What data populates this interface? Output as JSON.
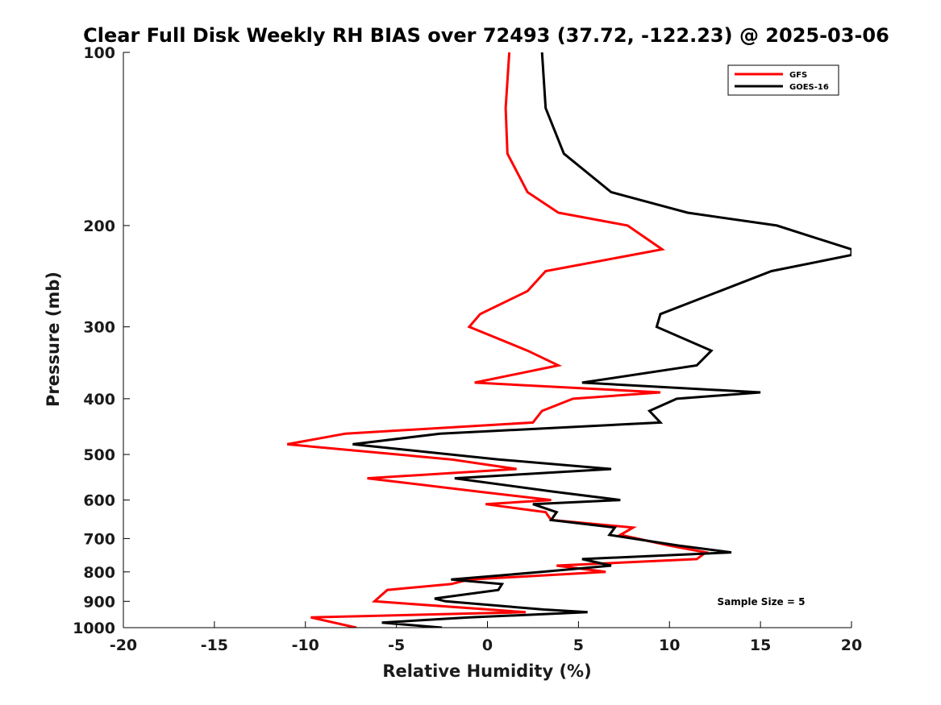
{
  "chart_data": {
    "type": "line",
    "title": "Clear Full Disk Weekly RH BIAS over 72493 (37.72, -122.23) @ 2025-03-06",
    "xlabel": "Relative Humidity (%)",
    "ylabel": "Pressure (mb)",
    "xlim": [
      -20,
      20
    ],
    "ylim": [
      100,
      1000
    ],
    "y_scale": "log",
    "y_reversed": true,
    "x_ticks": [
      -20,
      -15,
      -10,
      -5,
      0,
      5,
      10,
      15,
      20
    ],
    "y_ticks": [
      100,
      200,
      300,
      400,
      500,
      600,
      700,
      800,
      900,
      1000
    ],
    "grid": false,
    "legend_position": "top-right",
    "annotation": "Sample Size = 5",
    "series": [
      {
        "name": "GFS",
        "color": "#ff0000",
        "points": [
          [
            1.2,
            100
          ],
          [
            1.0,
            125
          ],
          [
            1.1,
            150
          ],
          [
            2.2,
            175
          ],
          [
            3.9,
            190
          ],
          [
            7.7,
            200
          ],
          [
            9.6,
            220
          ],
          [
            3.2,
            240
          ],
          [
            2.2,
            260
          ],
          [
            -0.4,
            285
          ],
          [
            -1.0,
            300
          ],
          [
            2.2,
            330
          ],
          [
            3.9,
            350
          ],
          [
            -0.7,
            375
          ],
          [
            9.5,
            390
          ],
          [
            4.7,
            400
          ],
          [
            3.0,
            420
          ],
          [
            2.5,
            440
          ],
          [
            -7.8,
            460
          ],
          [
            -11.0,
            480
          ],
          [
            -2.0,
            510
          ],
          [
            1.6,
            530
          ],
          [
            -6.6,
            550
          ],
          [
            -0.5,
            580
          ],
          [
            3.5,
            600
          ],
          [
            -0.1,
            610
          ],
          [
            3.2,
            630
          ],
          [
            3.5,
            650
          ],
          [
            8.0,
            670
          ],
          [
            7.3,
            690
          ],
          [
            10.0,
            720
          ],
          [
            12.0,
            740
          ],
          [
            11.5,
            760
          ],
          [
            3.8,
            780
          ],
          [
            6.5,
            800
          ],
          [
            -1.0,
            825
          ],
          [
            -2.0,
            840
          ],
          [
            -5.5,
            860
          ],
          [
            -6.2,
            900
          ],
          [
            2.1,
            940
          ],
          [
            -9.7,
            960
          ],
          [
            -7.2,
            1000
          ]
        ]
      },
      {
        "name": "GOES-16",
        "color": "#000000",
        "points": [
          [
            3.0,
            100
          ],
          [
            3.2,
            125
          ],
          [
            4.2,
            150
          ],
          [
            6.8,
            175
          ],
          [
            11.0,
            190
          ],
          [
            15.9,
            200
          ],
          [
            20.0,
            220
          ],
          [
            20.0,
            225
          ],
          [
            15.6,
            240
          ],
          [
            9.5,
            285
          ],
          [
            9.3,
            300
          ],
          [
            12.3,
            330
          ],
          [
            11.5,
            350
          ],
          [
            5.2,
            375
          ],
          [
            15.0,
            390
          ],
          [
            10.4,
            400
          ],
          [
            8.9,
            420
          ],
          [
            9.5,
            440
          ],
          [
            -2.6,
            460
          ],
          [
            -7.4,
            480
          ],
          [
            0.6,
            510
          ],
          [
            6.8,
            530
          ],
          [
            -1.8,
            550
          ],
          [
            3.6,
            580
          ],
          [
            7.3,
            600
          ],
          [
            2.5,
            610
          ],
          [
            3.8,
            630
          ],
          [
            3.5,
            650
          ],
          [
            7.0,
            670
          ],
          [
            6.7,
            690
          ],
          [
            10.5,
            720
          ],
          [
            13.4,
            740
          ],
          [
            5.2,
            760
          ],
          [
            6.8,
            780
          ],
          [
            3.0,
            800
          ],
          [
            -2.0,
            825
          ],
          [
            0.8,
            840
          ],
          [
            0.6,
            860
          ],
          [
            -2.9,
            890
          ],
          [
            -2.3,
            900
          ],
          [
            3.1,
            930
          ],
          [
            5.5,
            940
          ],
          [
            -1.0,
            960
          ],
          [
            -5.8,
            980
          ],
          [
            -2.5,
            1000
          ]
        ]
      }
    ]
  }
}
